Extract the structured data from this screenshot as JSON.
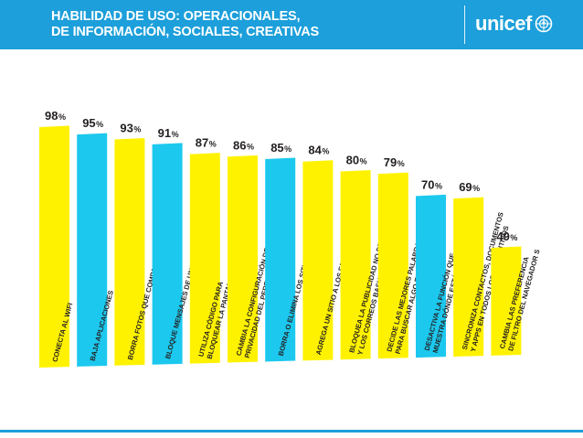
{
  "header": {
    "title_line1": "HABILIDAD DE USO: OPERACIONALES,",
    "title_line2": "DE INFORMACIÓN, SOCIALES, CREATIVAS",
    "logo_text": "unicef",
    "logo_icon": "unicef-emblem-icon"
  },
  "colors": {
    "header_bg": "#1c9fda",
    "yellow": "#fff200",
    "cyan": "#1cc8ee",
    "label_text": "#231f20",
    "value_text": "#231f20"
  },
  "chart_data": {
    "type": "bar",
    "title": "",
    "xlabel": "",
    "ylabel": "",
    "ylim": [
      0,
      100
    ],
    "grid": false,
    "legend": "none",
    "categories": [
      "CONECTA AL WIFI",
      "BAJA APLICACIONES",
      "BORRA FOTOS QUE COMPARTIÓ O RECIBIÓ",
      "BLOQUE MENSAJES DE UNA PERSONA",
      "UTILIZA CÓDIGO PARA|BLOQUEAR LA PANTALLA",
      "CAMBIA LA CONFIGURACIÓN DE|PRIVACIDAD DEL PERFIL EN UNA RED SOCIAL",
      "BORRA O ELIMINA LOS SITIOS QUE VISITÓ",
      "AGREGA UN SITIO A LOS FAVORITOS",
      "BLOQUEA LA PUBLICIDAD NO DESEADA|Y LOS CORREOS BASURA O SPAM",
      "DECIDE LAS MEJORES PALABRAS|PARA BUSCAR ALGO EN LÍNEA",
      "DESACTIVA LA FUNCIÓN QUE|MUESTRA DÓNDE ESTÁS",
      "SINCRONIZA CONTACTOS, DOCUMENTOS|Y APPS EN TODOS LOS DISPOSITIVOS",
      "CAMBIA LAS PREFERENCIA|DE FILTRO DEL NAVEGADOR S"
    ],
    "values": [
      98,
      95,
      93,
      91,
      87,
      86,
      85,
      84,
      80,
      79,
      70,
      69,
      49
    ],
    "value_labels": [
      "98%",
      "95%",
      "93%",
      "91%",
      "87%",
      "86%",
      "85%",
      "84%",
      "80%",
      "79%",
      "70%",
      "69%",
      "49%"
    ],
    "bar_colors": [
      "yellow",
      "cyan",
      "yellow",
      "cyan",
      "yellow",
      "yellow",
      "cyan",
      "yellow",
      "yellow",
      "yellow",
      "cyan",
      "yellow",
      "yellow"
    ]
  }
}
